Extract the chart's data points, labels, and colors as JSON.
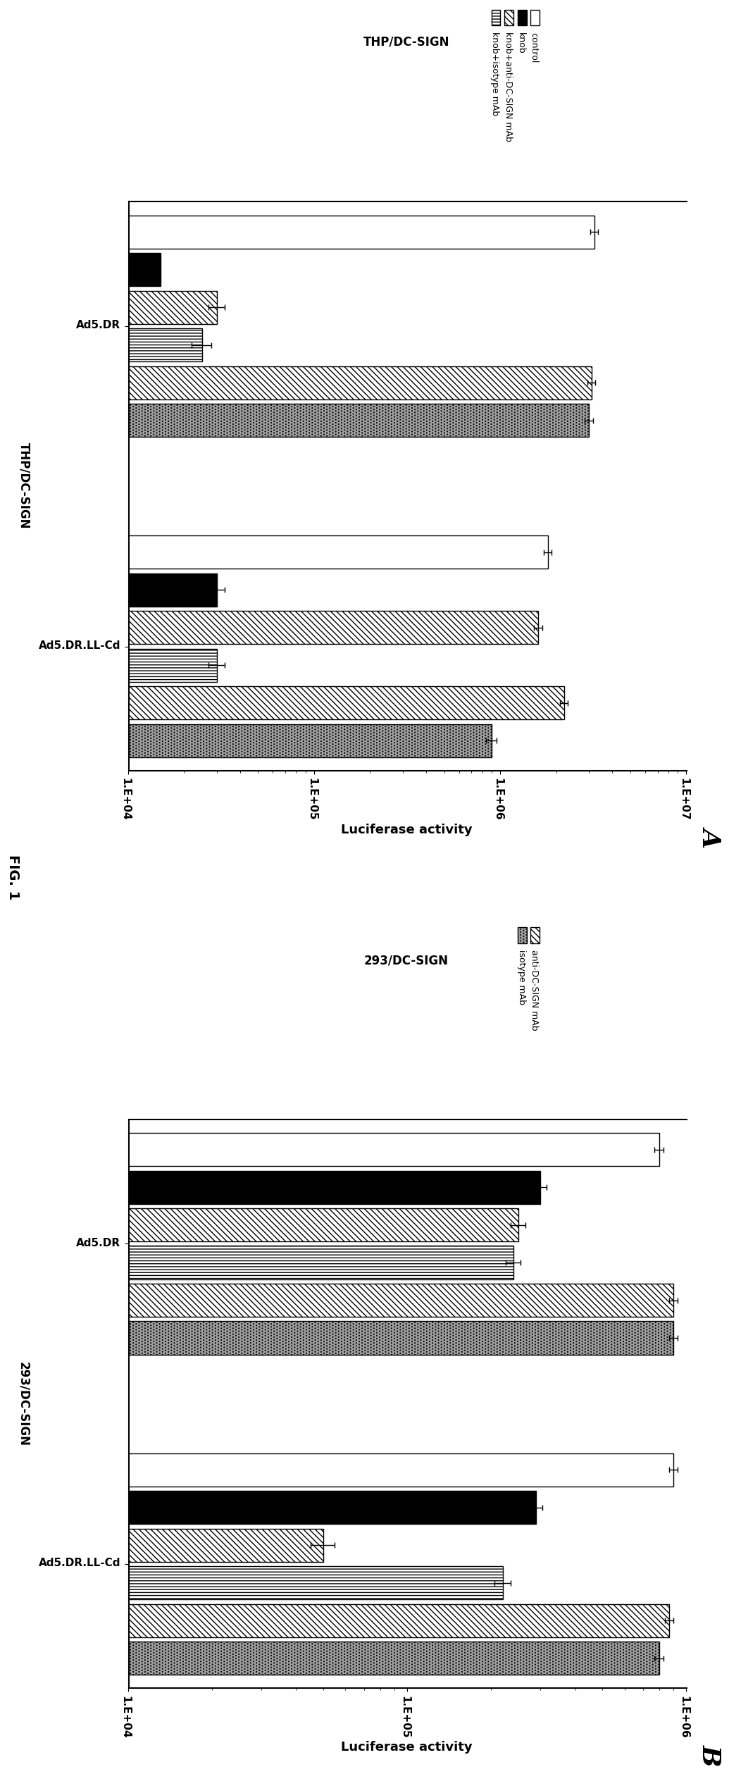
{
  "panel_A": {
    "title": "Luciferase activity",
    "panel_label": "A",
    "cell_line": "THP/DC-SIGN",
    "xlim": [
      10000.0,
      10000000.0
    ],
    "xticks": [
      10000.0,
      100000.0,
      1000000.0,
      10000000.0
    ],
    "xticklabels": [
      "1.E+04",
      "1.E+05",
      "1.E+06",
      "1.E+07"
    ],
    "groups": [
      "Ad5.DR",
      "Ad5.DR.LL-Cd"
    ],
    "bar_labels": [
      "control",
      "knob",
      "knob+anti-DC-SIGN mAb",
      "knob+isotype mAb",
      "anti-DC-SIGN mAb (hatched)",
      "isotype mAb (dotted)"
    ],
    "values_Ad5DR": [
      3200000,
      15000,
      30000,
      25000,
      3100000,
      3000000
    ],
    "values_Ad5DRLLCd": [
      1800000,
      30000,
      1600000,
      30000,
      2200000,
      900000
    ],
    "errors_Ad5DR": [
      150000,
      3000,
      3000,
      3000,
      150000,
      150000
    ],
    "errors_Ad5DRLLCd": [
      80000,
      3000,
      80000,
      3000,
      100000,
      60000
    ]
  },
  "panel_B": {
    "title": "Luciferase activity",
    "panel_label": "B",
    "cell_line": "293/DC-SIGN",
    "xlim": [
      10000.0,
      1000000.0
    ],
    "xticks": [
      10000.0,
      100000.0,
      1000000.0
    ],
    "xticklabels": [
      "1.E+04",
      "1.E+05",
      "1.E+06"
    ],
    "groups": [
      "Ad5.DR",
      "Ad5.DR.LL-Cd"
    ],
    "bar_labels": [
      "control",
      "knob",
      "knob+anti-DC-SIGN mAb",
      "knob+isotype mAb",
      "anti-DC-SIGN mAb (hatched)",
      "isotype mAb (dotted)"
    ],
    "values_Ad5DR": [
      800000,
      300000,
      250000,
      240000,
      900000,
      900000
    ],
    "values_Ad5DRLLCd": [
      900000,
      290000,
      50000,
      220000,
      870000,
      800000
    ],
    "errors_Ad5DR": [
      30000,
      15000,
      15000,
      15000,
      30000,
      30000
    ],
    "errors_Ad5DRLLCd": [
      30000,
      15000,
      5000,
      15000,
      30000,
      30000
    ]
  },
  "fig_label": "FIG. 1",
  "bar_styles_A": [
    {
      "facecolor": "white",
      "edgecolor": "black",
      "hatch": ""
    },
    {
      "facecolor": "black",
      "edgecolor": "black",
      "hatch": ""
    },
    {
      "facecolor": "white",
      "edgecolor": "black",
      "hatch": "////"
    },
    {
      "facecolor": "white",
      "edgecolor": "black",
      "hatch": "||||"
    },
    {
      "facecolor": "white",
      "edgecolor": "black",
      "hatch": "////"
    },
    {
      "facecolor": "#a0a0a0",
      "edgecolor": "black",
      "hatch": "...."
    }
  ],
  "bar_styles_B": [
    {
      "facecolor": "white",
      "edgecolor": "black",
      "hatch": ""
    },
    {
      "facecolor": "black",
      "edgecolor": "black",
      "hatch": ""
    },
    {
      "facecolor": "white",
      "edgecolor": "black",
      "hatch": "////"
    },
    {
      "facecolor": "white",
      "edgecolor": "black",
      "hatch": "||||"
    },
    {
      "facecolor": "white",
      "edgecolor": "black",
      "hatch": "////"
    },
    {
      "facecolor": "#a0a0a0",
      "edgecolor": "black",
      "hatch": "...."
    }
  ],
  "legend_A": [
    {
      "label": "control",
      "facecolor": "white",
      "hatch": ""
    },
    {
      "label": "knob",
      "facecolor": "black",
      "hatch": ""
    },
    {
      "label": "knob+anti-DC-SIGN mAb",
      "facecolor": "white",
      "hatch": "////"
    },
    {
      "label": "knob+isotype mAb",
      "facecolor": "white",
      "hatch": "||||"
    }
  ],
  "legend_B": [
    {
      "label": "anti-DC-SIGN mAb",
      "facecolor": "white",
      "hatch": "////"
    },
    {
      "label": "isotype mAb",
      "facecolor": "#a0a0a0",
      "hatch": "...."
    }
  ]
}
